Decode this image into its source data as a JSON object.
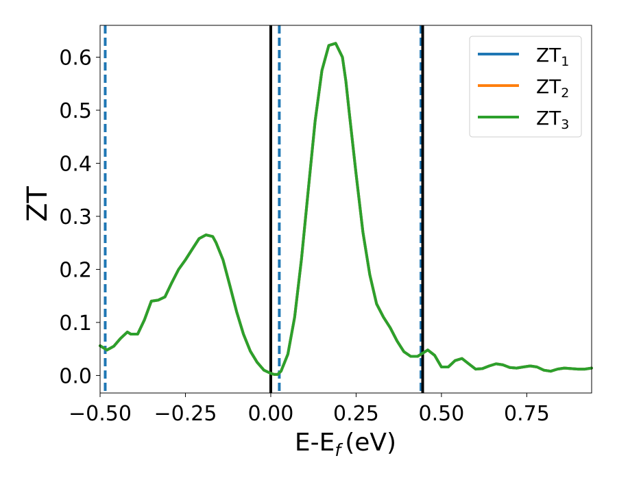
{
  "chart_data": {
    "type": "line",
    "title": "",
    "xlabel": "E-E",
    "xlabel_sub": "f",
    "xlabel_unit": "(eV)",
    "ylabel": "ZT",
    "xlim": [
      -0.5,
      0.94
    ],
    "ylim": [
      -0.033,
      0.66
    ],
    "xticks": [
      -0.5,
      -0.25,
      0.0,
      0.25,
      0.5,
      0.75
    ],
    "xtick_labels": [
      "−0.50",
      "−0.25",
      "0.00",
      "0.25",
      "0.50",
      "0.75"
    ],
    "yticks": [
      0.0,
      0.1,
      0.2,
      0.3,
      0.4,
      0.5,
      0.6
    ],
    "ytick_labels": [
      "0.0",
      "0.1",
      "0.2",
      "0.3",
      "0.4",
      "0.5",
      "0.6"
    ],
    "grid": false,
    "legend_position": "top-right",
    "series": [
      {
        "name": "ZT",
        "sub": "1",
        "color": "#1f77b4"
      },
      {
        "name": "ZT",
        "sub": "2",
        "color": "#ff7f0e"
      },
      {
        "name": "ZT",
        "sub": "3",
        "color": "#2ca02c"
      }
    ],
    "x": [
      -0.5,
      -0.48,
      -0.46,
      -0.44,
      -0.42,
      -0.41,
      -0.39,
      -0.37,
      -0.35,
      -0.33,
      -0.31,
      -0.29,
      -0.27,
      -0.25,
      -0.23,
      -0.21,
      -0.19,
      -0.17,
      -0.16,
      -0.14,
      -0.12,
      -0.1,
      -0.08,
      -0.06,
      -0.04,
      -0.02,
      0.0,
      0.01,
      0.02,
      0.03,
      0.05,
      0.07,
      0.09,
      0.11,
      0.13,
      0.15,
      0.17,
      0.19,
      0.21,
      0.22,
      0.23,
      0.25,
      0.27,
      0.29,
      0.31,
      0.33,
      0.35,
      0.37,
      0.39,
      0.41,
      0.43,
      0.44,
      0.46,
      0.48,
      0.5,
      0.52,
      0.54,
      0.56,
      0.58,
      0.6,
      0.62,
      0.64,
      0.66,
      0.68,
      0.7,
      0.72,
      0.74,
      0.76,
      0.78,
      0.8,
      0.82,
      0.84,
      0.86,
      0.88,
      0.9,
      0.92,
      0.94
    ],
    "y": [
      0.056,
      0.048,
      0.055,
      0.07,
      0.082,
      0.078,
      0.078,
      0.105,
      0.14,
      0.142,
      0.148,
      0.175,
      0.2,
      0.218,
      0.238,
      0.258,
      0.265,
      0.262,
      0.25,
      0.218,
      0.17,
      0.12,
      0.078,
      0.046,
      0.025,
      0.01,
      0.004,
      0.002,
      0.002,
      0.008,
      0.04,
      0.11,
      0.22,
      0.35,
      0.48,
      0.575,
      0.622,
      0.626,
      0.6,
      0.555,
      0.495,
      0.38,
      0.27,
      0.19,
      0.135,
      0.11,
      0.09,
      0.065,
      0.045,
      0.036,
      0.036,
      0.04,
      0.048,
      0.038,
      0.016,
      0.016,
      0.028,
      0.032,
      0.022,
      0.012,
      0.013,
      0.018,
      0.022,
      0.02,
      0.015,
      0.014,
      0.016,
      0.018,
      0.016,
      0.01,
      0.008,
      0.012,
      0.014,
      0.013,
      0.012,
      0.012,
      0.014
    ],
    "vlines": [
      {
        "x": -0.485,
        "style": "dashed",
        "color": "#1f77b4"
      },
      {
        "x": 0.0,
        "style": "solid",
        "color": "#000000"
      },
      {
        "x": 0.025,
        "style": "dashed",
        "color": "#1f77b4"
      },
      {
        "x": 0.44,
        "style": "dashed",
        "color": "#1f77b4"
      },
      {
        "x": 0.445,
        "style": "solid",
        "color": "#000000"
      }
    ]
  }
}
